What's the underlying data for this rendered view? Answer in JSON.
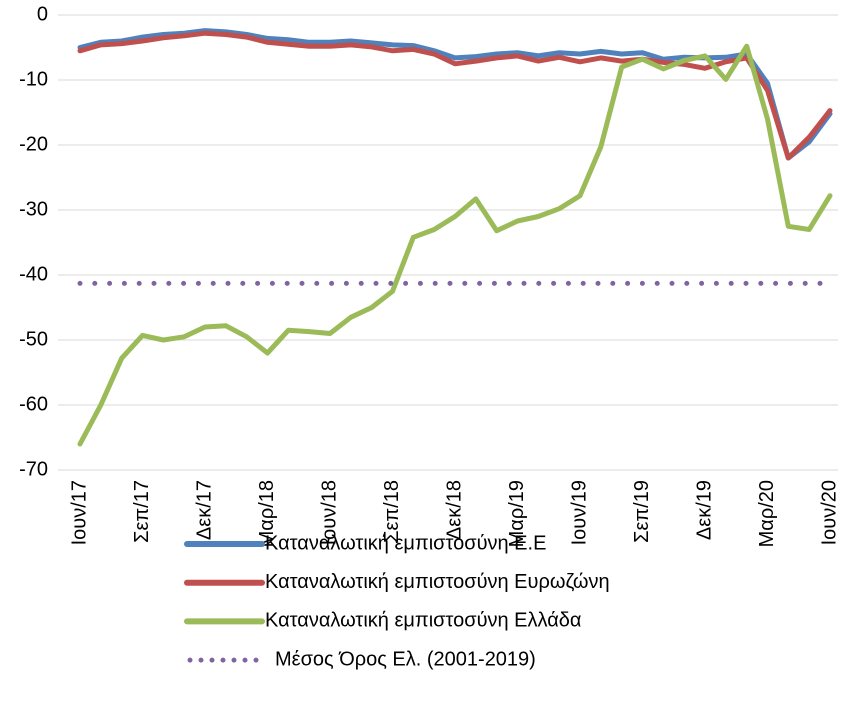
{
  "chart_data": {
    "type": "line",
    "categories": [
      "Ιουν/17",
      null,
      null,
      "Σεπ/17",
      null,
      null,
      "Δεκ/17",
      null,
      null,
      "Μαρ/18",
      null,
      null,
      "Ιουν/18",
      null,
      null,
      "Σεπ/18",
      null,
      null,
      "Δεκ/18",
      null,
      null,
      "Μαρ/19",
      null,
      null,
      "Ιουν/19",
      null,
      null,
      "Σεπ/19",
      null,
      null,
      "Δεκ/19",
      null,
      null,
      "Μαρ/20",
      null,
      null,
      "Ιουν/20"
    ],
    "series": [
      {
        "name": "Καταναλωτική εμπιστοσύνη Ε.Ε",
        "color": "#4f81bd",
        "style": "solid",
        "values": [
          -5,
          -4.2,
          -4,
          -3.4,
          -3,
          -2.8,
          -2.4,
          -2.6,
          -3,
          -3.6,
          -3.8,
          -4.2,
          -4.2,
          -4,
          -4.3,
          -4.6,
          -4.7,
          -5.5,
          -6.6,
          -6.4,
          -6,
          -5.8,
          -6.3,
          -5.8,
          -6,
          -5.6,
          -6,
          -5.8,
          -6.8,
          -6.5,
          -6.6,
          -6.5,
          -6,
          -10.5,
          -22,
          -19.5,
          -15.2
        ]
      },
      {
        "name": "Καταναλωτική εμπιστοσύνη Ευρωζώνη",
        "color": "#c0504d",
        "style": "solid",
        "values": [
          -5.5,
          -4.6,
          -4.4,
          -4,
          -3.5,
          -3.2,
          -2.8,
          -3,
          -3.4,
          -4.2,
          -4.5,
          -4.8,
          -4.8,
          -4.6,
          -4.9,
          -5.5,
          -5.3,
          -6,
          -7.5,
          -7.1,
          -6.6,
          -6.3,
          -7.1,
          -6.5,
          -7.2,
          -6.6,
          -7.1,
          -6.8,
          -7.3,
          -7.6,
          -8.2,
          -7.2,
          -6.6,
          -11.6,
          -22,
          -18.8,
          -14.7
        ]
      },
      {
        "name": "Καταναλωτική εμπιστοσύνη Ελλάδα",
        "color": "#9bbb59",
        "style": "solid",
        "values": [
          -66,
          -60,
          -52.8,
          -49.3,
          -50,
          -49.5,
          -48,
          -47.8,
          -49.5,
          -52,
          -48.5,
          -48.7,
          -49,
          -46.5,
          -45,
          -42.5,
          -34.2,
          -33,
          -31,
          -28.3,
          -33.2,
          -31.7,
          -31,
          -29.8,
          -27.8,
          -20.3,
          -8,
          -6.8,
          -8.3,
          -7,
          -6.3,
          -9.9,
          -4.8,
          -16,
          -32.5,
          -33,
          -27.8
        ]
      },
      {
        "name": "Μέσος Όρος Ελ. (2001-2019)",
        "color": "#8064a2",
        "style": "dotted",
        "values": [
          -41.3,
          -41.3,
          -41.3,
          -41.3,
          -41.3,
          -41.3,
          -41.3,
          -41.3,
          -41.3,
          -41.3,
          -41.3,
          -41.3,
          -41.3,
          -41.3,
          -41.3,
          -41.3,
          -41.3,
          -41.3,
          -41.3,
          -41.3,
          -41.3,
          -41.3,
          -41.3,
          -41.3,
          -41.3,
          -41.3,
          -41.3,
          -41.3,
          -41.3,
          -41.3,
          -41.3,
          -41.3,
          -41.3,
          -41.3,
          -41.3,
          -41.3,
          -41.3
        ]
      }
    ],
    "ylim": [
      -70,
      0
    ],
    "yticks": [
      0,
      -10,
      -20,
      -30,
      -40,
      -50,
      -60,
      -70
    ],
    "grid": true,
    "legend": "bottom"
  }
}
